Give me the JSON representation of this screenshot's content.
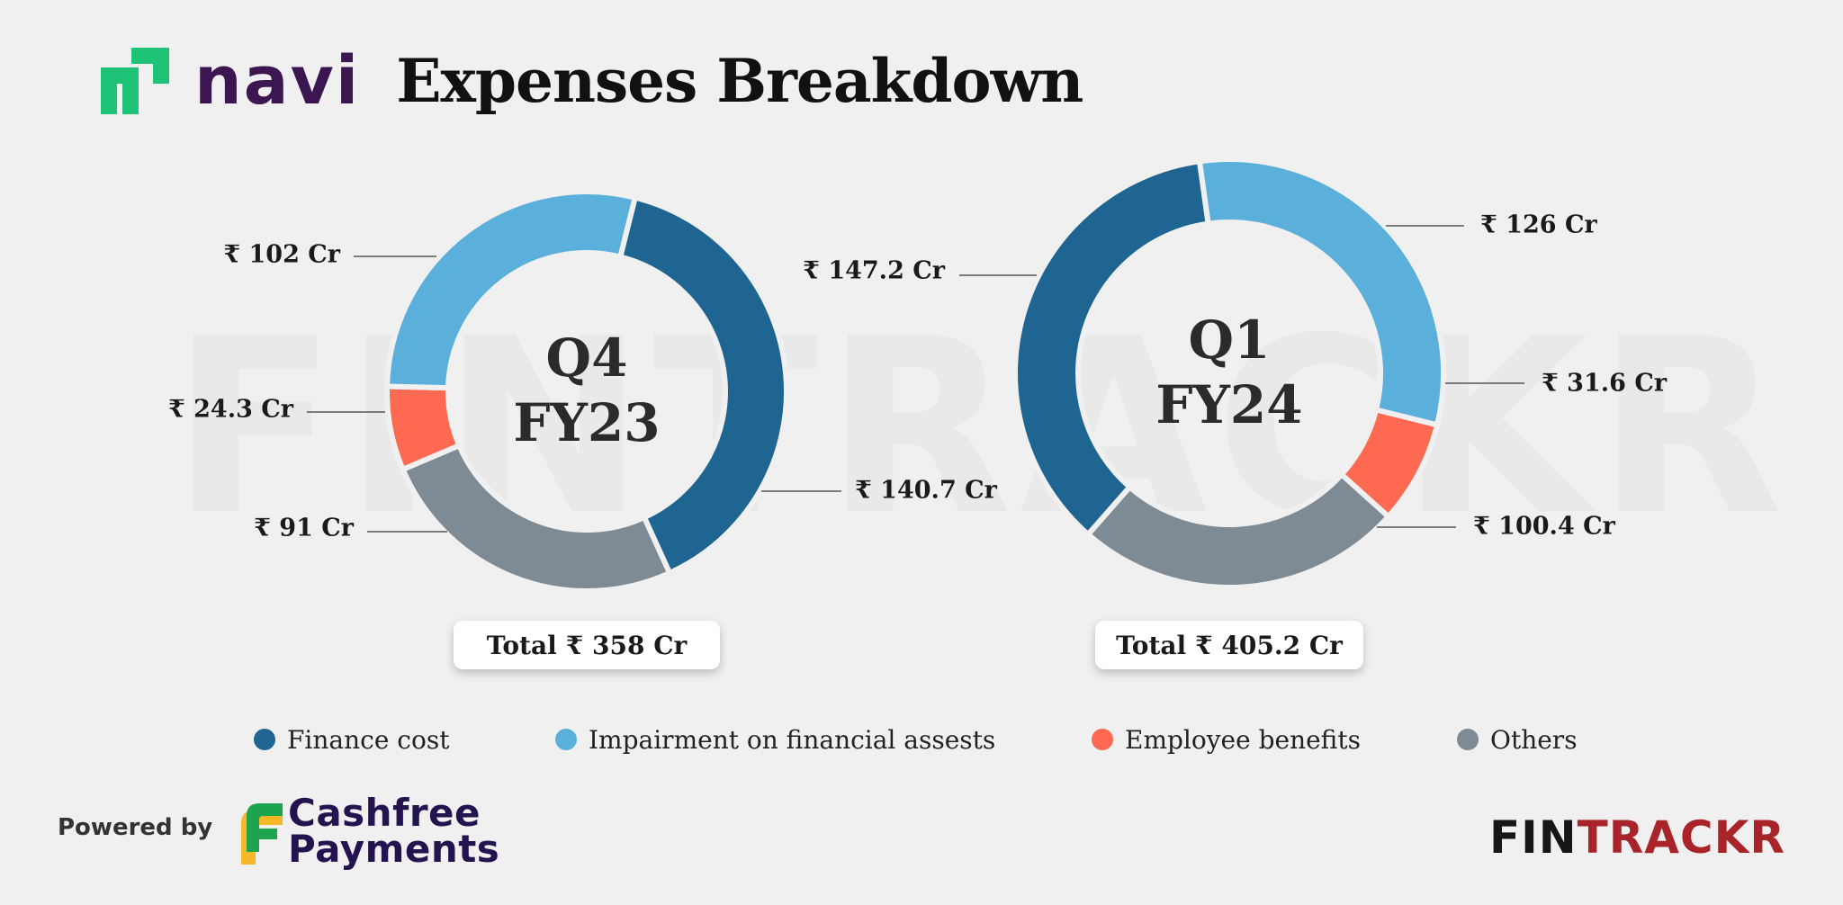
{
  "header": {
    "brand": "navi",
    "title": "Expenses Breakdown"
  },
  "watermark": "FINTRACKR",
  "chart_data": [
    {
      "type": "pie",
      "style": "donut",
      "center_label": [
        "Q4",
        "FY23"
      ],
      "categories": [
        "Finance cost",
        "Impairment on financial assests",
        "Employee benefits",
        "Others"
      ],
      "values": [
        140.7,
        102,
        24.3,
        91
      ],
      "labels": [
        "₹ 140.7 Cr",
        "₹ 102 Cr",
        "₹ 24.3 Cr",
        "₹ 91 Cr"
      ],
      "total_label": "Total",
      "total_value": "₹ 358 Cr"
    },
    {
      "type": "pie",
      "style": "donut",
      "center_label": [
        "Q1",
        "FY24"
      ],
      "categories": [
        "Finance cost",
        "Impairment on financial assests",
        "Employee benefits",
        "Others"
      ],
      "values": [
        147.2,
        126,
        31.6,
        100.4
      ],
      "labels": [
        "₹ 147.2 Cr",
        "₹ 126 Cr",
        "₹ 31.6 Cr",
        "₹ 100.4 Cr"
      ],
      "total_label": "Total",
      "total_value": "₹ 405.2 Cr"
    }
  ],
  "legend": [
    {
      "label": "Finance cost",
      "color": "#1e6591"
    },
    {
      "label": "Impairment on financial assests",
      "color": "#5ab0da"
    },
    {
      "label": "Employee benefits",
      "color": "#fd6a51"
    },
    {
      "label": "Others",
      "color": "#7e8b94"
    }
  ],
  "footer": {
    "powered_by": "Powered by",
    "partner_line1": "Cashfree",
    "partner_line2": "Payments",
    "brand_part1": "FIN",
    "brand_part2": "TRACKR"
  },
  "colors": {
    "finance": "#1e6591",
    "impairment": "#5ab0da",
    "employee": "#fd6a51",
    "others": "#7e8b94",
    "navi_green": "#1fc378",
    "navi_purple": "#3b1650"
  }
}
